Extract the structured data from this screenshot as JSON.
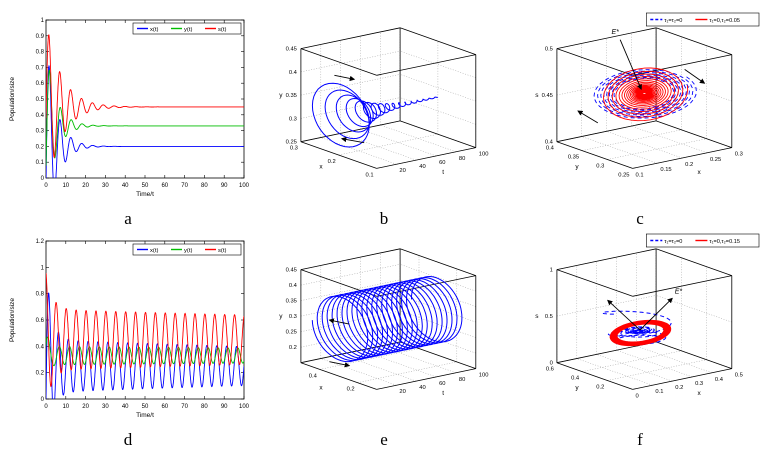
{
  "colors": {
    "blue": "#0000ff",
    "green": "#00bd00",
    "red": "#ff0000"
  },
  "figure": {
    "background": "#ffffff"
  },
  "chart_data": [
    {
      "id": "a",
      "label": "a",
      "kind": "2d",
      "type": "line",
      "xlabel": "Time/t",
      "ylabel": "Population/size",
      "xlim": [
        0,
        100
      ],
      "ylim": [
        0,
        1
      ],
      "xticks": [
        0,
        10,
        20,
        30,
        40,
        50,
        60,
        70,
        80,
        90,
        100
      ],
      "yticks": [
        0,
        0.1,
        0.2,
        0.3,
        0.4,
        0.5,
        0.6,
        0.7,
        0.8,
        0.9,
        1
      ],
      "legend": [
        {
          "label": "x(t)",
          "color": "blue"
        },
        {
          "label": "y(t)",
          "color": "green"
        },
        {
          "label": "s(t)",
          "color": "red"
        }
      ],
      "equilibria": {
        "x": 0.2,
        "y": 0.33,
        "s": 0.45
      },
      "trange": [
        0,
        100
      ],
      "dt": 0.08,
      "series": [
        {
          "name": "x(t)",
          "color": "blue",
          "eq": 0.2,
          "amp": 0.7,
          "decay": 0.2,
          "period": 5.5,
          "phase": -1.9
        },
        {
          "name": "y(t)",
          "color": "green",
          "eq": 0.33,
          "amp": 0.5,
          "decay": 0.2,
          "period": 5.5,
          "phase": -2.1
        },
        {
          "name": "s(t)",
          "color": "red",
          "eq": 0.45,
          "amp": 0.55,
          "decay": 0.13,
          "period": 5.5,
          "phase": -1.7
        }
      ]
    },
    {
      "id": "b",
      "label": "b",
      "kind": "3d",
      "type": "line3d",
      "axes": {
        "right": {
          "label": "t",
          "lim": [
            0,
            100
          ],
          "ticks": [
            20,
            40,
            60,
            80,
            100
          ]
        },
        "left": {
          "label": "x",
          "lim": [
            0.1,
            0.3
          ],
          "ticks": [
            0.1,
            0.2,
            0.3
          ]
        },
        "up": {
          "label": "y",
          "lim": [
            0.25,
            0.45
          ],
          "ticks": [
            0.25,
            0.3,
            0.35,
            0.4,
            0.45
          ]
        }
      },
      "curves": [
        {
          "color": "blue",
          "width": 1,
          "trange": [
            0,
            100
          ],
          "dt": 0.15,
          "right": {
            "var": "t"
          },
          "left": {
            "eq": 0.2,
            "amp": 0.085,
            "decay": 0.045,
            "period": 6,
            "phase": -2.6
          },
          "up": {
            "eq": 0.33,
            "amp": 0.075,
            "decay": 0.045,
            "period": 6,
            "phase": -1.0
          }
        }
      ],
      "annotations": [
        {
          "arrows": [
            [
              0.3,
              0.33,
              0.38,
              0.35
            ]
          ]
        },
        {
          "arrows": [
            [
              0.42,
              0.67,
              0.33,
              0.65
            ]
          ]
        }
      ]
    },
    {
      "id": "c",
      "label": "c",
      "kind": "3d",
      "type": "line3d",
      "axes": {
        "right": {
          "label": "x",
          "lim": [
            0.1,
            0.3
          ],
          "ticks": [
            0.1,
            0.15,
            0.2,
            0.25,
            0.3
          ]
        },
        "left": {
          "label": "y",
          "lim": [
            0.25,
            0.4
          ],
          "ticks": [
            0.25,
            0.3,
            0.35,
            0.4
          ]
        },
        "up": {
          "label": "s",
          "lim": [
            0.4,
            0.5
          ],
          "ticks": [
            0.4,
            0.45,
            0.5
          ]
        }
      },
      "legend": [
        {
          "label": "τ₁=τ₂=0",
          "color": "blue",
          "dash": "3,2"
        },
        {
          "label": "τ₁=0,τ₂=0.05",
          "color": "red"
        }
      ],
      "equilibrium_label": "E*",
      "curves": [
        {
          "color": "blue",
          "dash": "4,3",
          "width": 0.9,
          "trange": [
            0,
            50
          ],
          "dt": 0.15,
          "right": {
            "eq": 0.2,
            "amp": 0.085,
            "decay": 0.012,
            "period": 6,
            "phase": 0
          },
          "left": {
            "eq": 0.325,
            "amp": 0.062,
            "decay": 0.012,
            "period": 6,
            "phase": 1.57
          },
          "up": {
            "eq": 0.455,
            "amp": 0.012,
            "decay": 0.01,
            "period": 6,
            "phase": 0.8
          }
        },
        {
          "color": "red",
          "width": 0.9,
          "trange": [
            0,
            160
          ],
          "dt": 0.15,
          "right": {
            "eq": 0.2,
            "amp": 0.07,
            "decay": 0.02,
            "period": 6,
            "phase": 0.5
          },
          "left": {
            "eq": 0.325,
            "amp": 0.052,
            "decay": 0.02,
            "period": 6,
            "phase": 2.07
          },
          "up": {
            "eq": 0.455,
            "amp": 0.018,
            "decay": 0.025,
            "period": 6,
            "phase": 1.2
          }
        }
      ],
      "annotations": [
        {
          "text": "E*",
          "tx": 0.4,
          "ty": 0.12,
          "arrows": [
            [
              0.42,
              0.15,
              0.505,
              0.4
            ]
          ]
        },
        {
          "arrows": [
            [
              0.68,
              0.3,
              0.76,
              0.37
            ]
          ]
        },
        {
          "arrows": [
            [
              0.33,
              0.57,
              0.25,
              0.51
            ]
          ]
        }
      ]
    },
    {
      "id": "d",
      "label": "d",
      "kind": "2d",
      "type": "line",
      "xlabel": "Time/t",
      "ylabel": "Population/size",
      "xlim": [
        0,
        100
      ],
      "ylim": [
        0,
        1.2
      ],
      "xticks": [
        0,
        10,
        20,
        30,
        40,
        50,
        60,
        70,
        80,
        90,
        100
      ],
      "yticks": [
        0,
        0.2,
        0.4,
        0.6,
        0.8,
        1,
        1.2
      ],
      "legend": [
        {
          "label": "x(t)",
          "color": "blue"
        },
        {
          "label": "y(t)",
          "color": "green"
        },
        {
          "label": "s(t)",
          "color": "red"
        }
      ],
      "trange": [
        0,
        100
      ],
      "dt": 0.08,
      "series": [
        {
          "name": "x(t)",
          "color": "blue",
          "eq": 0.25,
          "amp": 0.2,
          "decay": 0.003,
          "period": 5,
          "phase": -1.57,
          "amp2": 0.6,
          "decay2": 0.35,
          "period2": 5,
          "phase2": -2.0
        },
        {
          "name": "y(t)",
          "color": "green",
          "eq": 0.33,
          "amp": 0.07,
          "decay": 0.002,
          "period": 5,
          "phase": -2.4,
          "amp2": 0.18,
          "decay2": 0.4,
          "period2": 5,
          "phase2": -0.8
        },
        {
          "name": "s(t)",
          "color": "red",
          "eq": 0.45,
          "amp": 0.23,
          "decay": 0.002,
          "period": 5,
          "phase": -0.3,
          "amp2": 0.3,
          "decay2": 0.3,
          "period2": 5,
          "phase2": 0.3
        }
      ]
    },
    {
      "id": "e",
      "label": "e",
      "kind": "3d",
      "type": "line3d",
      "axes": {
        "right": {
          "label": "t",
          "lim": [
            0,
            100
          ],
          "ticks": [
            20,
            40,
            60,
            80,
            100
          ]
        },
        "left": {
          "label": "x",
          "lim": [
            0.1,
            0.5
          ],
          "ticks": [
            0.2,
            0.4
          ]
        },
        "up": {
          "label": "y",
          "lim": [
            0.15,
            0.45
          ],
          "ticks": [
            0.2,
            0.25,
            0.3,
            0.35,
            0.4,
            0.45
          ]
        }
      },
      "curves": [
        {
          "color": "blue",
          "width": 1,
          "trange": [
            0,
            100
          ],
          "dt": 0.08,
          "right": {
            "var": "t"
          },
          "left": {
            "eq": 0.3,
            "amp": 0.14,
            "decay": 0,
            "period": 5,
            "phase": 0
          },
          "up": {
            "eq": 0.3,
            "amp": 0.1,
            "decay": 0,
            "period": 5,
            "phase": 1.57
          }
        }
      ],
      "annotations": [
        {
          "arrows": [
            [
              0.28,
              0.66,
              0.36,
              0.68
            ]
          ]
        },
        {
          "arrows": [
            [
              0.36,
              0.47,
              0.28,
              0.45
            ]
          ]
        }
      ]
    },
    {
      "id": "f",
      "label": "f",
      "kind": "3d",
      "type": "line3d",
      "axes": {
        "right": {
          "label": "x",
          "lim": [
            0,
            0.5
          ],
          "ticks": [
            0,
            0.1,
            0.2,
            0.3,
            0.4,
            0.5
          ]
        },
        "left": {
          "label": "y",
          "lim": [
            0,
            0.6
          ],
          "ticks": [
            0.2,
            0.4,
            0.6
          ]
        },
        "up": {
          "label": "s",
          "lim": [
            0,
            1
          ],
          "ticks": [
            0,
            0.5,
            1
          ]
        }
      },
      "legend": [
        {
          "label": "τ₁=τ₂=0",
          "color": "blue",
          "dash": "3,2"
        },
        {
          "label": "τ₁=0,τ₂=0.15",
          "color": "red"
        }
      ],
      "equilibrium_label": "E*",
      "curves": [
        {
          "color": "blue",
          "dash": "4,3",
          "width": 1,
          "trange": [
            0,
            90
          ],
          "dt": 0.12,
          "right": {
            "eq": 0.22,
            "amp": 0.16,
            "decay": 0.03,
            "period": 6,
            "phase": 2.8
          },
          "left": {
            "eq": 0.3,
            "amp": 0.14,
            "decay": 0.03,
            "period": 6,
            "phase": 4.4
          },
          "up": {
            "eq": 0.38,
            "amp": 0.028,
            "decay": 0.05,
            "period": 6,
            "phase": 0,
            "amp2": 0.3,
            "decay2": 0.08,
            "period2": 40,
            "phase2": 0.6
          }
        },
        {
          "color": "red",
          "width": 2,
          "trange": [
            0,
            150
          ],
          "dt": 0.1,
          "right": {
            "eq": 0.23,
            "amp": 0.13,
            "decay": 0.0015,
            "period": 5,
            "phase": 0
          },
          "left": {
            "eq": 0.3,
            "amp": 0.12,
            "decay": 0.0015,
            "period": 5,
            "phase": 1.57
          },
          "up": {
            "eq": 0.36,
            "amp": 0.05,
            "decay": 0.002,
            "period": 5,
            "phase": 0.6
          }
        }
      ],
      "annotations": [
        {
          "text": "E*",
          "tx": 0.655,
          "ty": 0.315,
          "arrows": [
            [
              0.5,
              0.5,
              0.63,
              0.34
            ]
          ]
        },
        {
          "arrows": [
            [
              0.5,
              0.5,
              0.37,
              0.35
            ]
          ]
        }
      ]
    }
  ]
}
